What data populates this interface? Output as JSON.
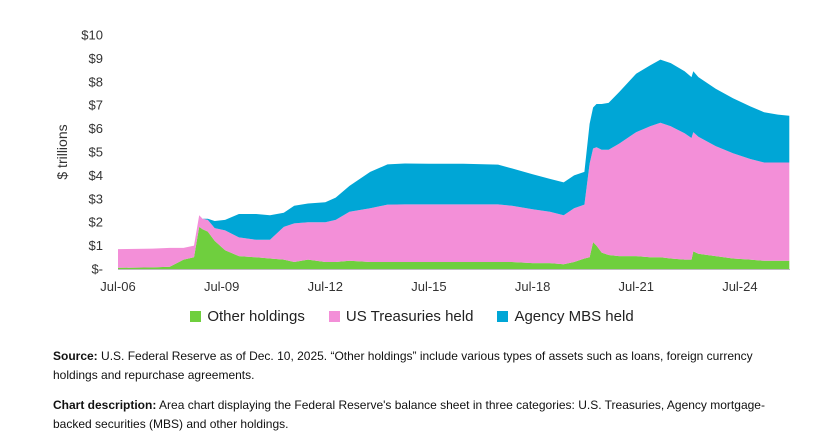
{
  "chart_data": {
    "type": "area",
    "stacked": true,
    "ylabel": "$ trillions",
    "ylim": [
      0,
      10
    ],
    "yticks": [
      "$-",
      "$1",
      "$2",
      "$3",
      "$4",
      "$5",
      "$6",
      "$7",
      "$8",
      "$9",
      "$10"
    ],
    "xticks": [
      {
        "label": "Jul-06",
        "year": 2006.5
      },
      {
        "label": "Jul-09",
        "year": 2009.5
      },
      {
        "label": "Jul-12",
        "year": 2012.5
      },
      {
        "label": "Jul-15",
        "year": 2015.5
      },
      {
        "label": "Jul-18",
        "year": 2018.5
      },
      {
        "label": "Jul-21",
        "year": 2021.5
      },
      {
        "label": "Jul-24",
        "year": 2024.5
      }
    ],
    "xlim": [
      2006.5,
      2025.95
    ],
    "legend_position": "bottom",
    "x": [
      2006.5,
      2007.5,
      2008.0,
      2008.4,
      2008.7,
      2008.85,
      2008.95,
      2009.1,
      2009.3,
      2009.6,
      2010.0,
      2010.5,
      2010.9,
      2011.3,
      2011.6,
      2012.0,
      2012.5,
      2012.8,
      2013.2,
      2013.8,
      2014.3,
      2014.8,
      2015.5,
      2016.5,
      2017.5,
      2017.9,
      2018.5,
      2019.0,
      2019.4,
      2019.7,
      2020.0,
      2020.15,
      2020.25,
      2020.35,
      2020.5,
      2020.7,
      2021.0,
      2021.5,
      2021.9,
      2022.2,
      2022.5,
      2022.9,
      2023.1,
      2023.15,
      2023.3,
      2023.8,
      2024.3,
      2024.8,
      2025.2,
      2025.6,
      2025.93
    ],
    "series": [
      {
        "name": "Other holdings",
        "color": "#6fcf3e",
        "values": [
          0.05,
          0.07,
          0.1,
          0.4,
          0.5,
          1.8,
          1.7,
          1.6,
          1.2,
          0.8,
          0.55,
          0.5,
          0.45,
          0.4,
          0.3,
          0.4,
          0.3,
          0.3,
          0.35,
          0.3,
          0.3,
          0.3,
          0.3,
          0.3,
          0.3,
          0.3,
          0.25,
          0.25,
          0.2,
          0.3,
          0.45,
          0.5,
          1.15,
          1.0,
          0.7,
          0.6,
          0.55,
          0.55,
          0.5,
          0.5,
          0.45,
          0.4,
          0.4,
          0.75,
          0.65,
          0.55,
          0.45,
          0.4,
          0.35,
          0.35,
          0.35
        ]
      },
      {
        "name": "US Treasuries held",
        "color": "#f38fd8",
        "values": [
          0.8,
          0.8,
          0.8,
          0.5,
          0.5,
          0.5,
          0.45,
          0.5,
          0.55,
          0.85,
          0.8,
          0.75,
          0.8,
          1.4,
          1.65,
          1.6,
          1.7,
          1.8,
          2.1,
          2.3,
          2.45,
          2.46,
          2.46,
          2.46,
          2.46,
          2.4,
          2.3,
          2.2,
          2.1,
          2.3,
          2.3,
          4.0,
          4.0,
          4.2,
          4.4,
          4.5,
          4.8,
          5.3,
          5.6,
          5.75,
          5.65,
          5.4,
          5.2,
          5.1,
          5.0,
          4.7,
          4.5,
          4.3,
          4.2,
          4.2,
          4.2
        ]
      },
      {
        "name": "Agency MBS held",
        "color": "#00a6d6",
        "values": [
          0,
          0,
          0,
          0,
          0,
          0,
          0,
          0.05,
          0.3,
          0.45,
          1.0,
          1.1,
          1.05,
          0.6,
          0.75,
          0.8,
          0.85,
          0.95,
          1.1,
          1.55,
          1.72,
          1.75,
          1.74,
          1.74,
          1.7,
          1.6,
          1.5,
          1.4,
          1.4,
          1.4,
          1.4,
          1.7,
          1.75,
          1.85,
          1.95,
          2.0,
          2.2,
          2.5,
          2.6,
          2.7,
          2.7,
          2.65,
          2.6,
          2.6,
          2.55,
          2.45,
          2.35,
          2.25,
          2.15,
          2.05,
          2.0
        ]
      }
    ]
  },
  "notes": {
    "source_label": "Source:",
    "source_text": " U.S. Federal Reserve as of Dec. 10, 2025. “Other holdings” include various types of assets such as loans, foreign currency holdings and repurchase agreements.",
    "description_label": "Chart description:",
    "description_text": " Area chart displaying the Federal Reserve's balance sheet in three categories: U.S. Treasuries, Agency mortgage-backed securities (MBS) and other holdings."
  }
}
